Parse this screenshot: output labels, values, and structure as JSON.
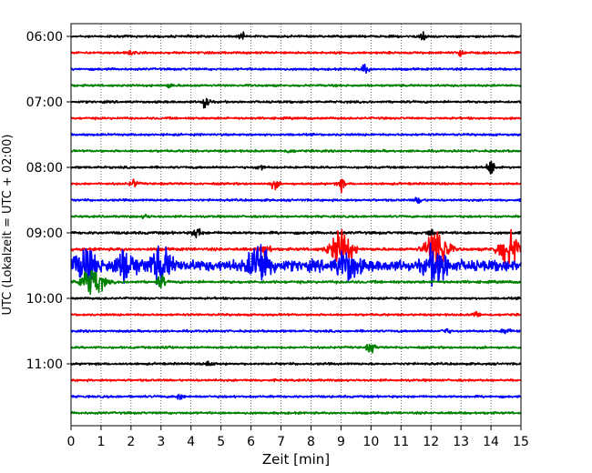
{
  "chart_data": {
    "type": "line",
    "title": "",
    "xlabel": "Zeit  [min]",
    "ylabel": "UTC (Lokalzeit = UTC + 02:00)",
    "xlim": [
      0,
      15
    ],
    "x_ticks": [
      0,
      1,
      2,
      3,
      4,
      5,
      6,
      7,
      8,
      9,
      10,
      11,
      12,
      13,
      14,
      15
    ],
    "y_ticks": [
      {
        "label": "06:00",
        "row": 0
      },
      {
        "label": "07:00",
        "row": 4
      },
      {
        "label": "08:00",
        "row": 8
      },
      {
        "label": "09:00",
        "row": 12
      },
      {
        "label": "10:00",
        "row": 16
      },
      {
        "label": "11:00",
        "row": 20
      }
    ],
    "grid": "vertical dotted at each minute",
    "trace_colors": [
      "#000000",
      "#ff0000",
      "#0000ff",
      "#008000"
    ],
    "row_interval_min": 15,
    "rows": [
      {
        "start": "06:00",
        "color": "#000000",
        "amp": 1.0,
        "events": [
          {
            "x": 5.7,
            "a": 3
          },
          {
            "x": 11.7,
            "a": 5
          }
        ]
      },
      {
        "start": "06:15",
        "color": "#ff0000",
        "amp": 1.0,
        "events": [
          {
            "x": 13.0,
            "a": 4
          },
          {
            "x": 2.0,
            "a": 2
          }
        ]
      },
      {
        "start": "06:30",
        "color": "#0000ff",
        "amp": 1.0,
        "events": [
          {
            "x": 9.8,
            "a": 5
          }
        ]
      },
      {
        "start": "06:45",
        "color": "#008000",
        "amp": 1.0,
        "events": [
          {
            "x": 3.3,
            "a": 2
          }
        ]
      },
      {
        "start": "07:00",
        "color": "#000000",
        "amp": 1.0,
        "events": [
          {
            "x": 4.5,
            "a": 8
          }
        ]
      },
      {
        "start": "07:15",
        "color": "#ff0000",
        "amp": 1.0,
        "events": []
      },
      {
        "start": "07:30",
        "color": "#0000ff",
        "amp": 1.0,
        "events": []
      },
      {
        "start": "07:45",
        "color": "#008000",
        "amp": 1.0,
        "events": [
          {
            "x": 7.3,
            "a": 2
          }
        ]
      },
      {
        "start": "08:00",
        "color": "#000000",
        "amp": 1.0,
        "events": [
          {
            "x": 6.3,
            "a": 3
          },
          {
            "x": 14.0,
            "a": 8
          }
        ]
      },
      {
        "start": "08:15",
        "color": "#ff0000",
        "amp": 1.0,
        "events": [
          {
            "x": 6.8,
            "a": 5
          },
          {
            "x": 9.0,
            "a": 6
          },
          {
            "x": 2.1,
            "a": 4
          }
        ]
      },
      {
        "start": "08:30",
        "color": "#0000ff",
        "amp": 1.0,
        "events": [
          {
            "x": 11.6,
            "a": 4
          }
        ]
      },
      {
        "start": "08:45",
        "color": "#008000",
        "amp": 1.0,
        "events": [
          {
            "x": 2.5,
            "a": 2
          }
        ]
      },
      {
        "start": "09:00",
        "color": "#000000",
        "amp": 1.2,
        "events": [
          {
            "x": 4.2,
            "a": 7
          },
          {
            "x": 12.0,
            "a": 4
          }
        ]
      },
      {
        "start": "09:15",
        "color": "#ff0000",
        "amp": 1.3,
        "events": [
          {
            "x": 6.5,
            "a": 10
          },
          {
            "x": 9.0,
            "a": 20
          },
          {
            "x": 12.2,
            "a": 24
          },
          {
            "x": 14.6,
            "a": 18
          }
        ]
      },
      {
        "start": "09:30",
        "color": "#0000ff",
        "amp": 5,
        "events": [
          {
            "x": 0.5,
            "a": 16
          },
          {
            "x": 1.8,
            "a": 14
          },
          {
            "x": 3.0,
            "a": 16
          },
          {
            "x": 6.3,
            "a": 22
          },
          {
            "x": 9.2,
            "a": 14
          },
          {
            "x": 12.2,
            "a": 18
          }
        ]
      },
      {
        "start": "09:45",
        "color": "#008000",
        "amp": 1.2,
        "events": [
          {
            "x": 0.7,
            "a": 16
          },
          {
            "x": 3.0,
            "a": 8
          }
        ]
      },
      {
        "start": "10:00",
        "color": "#000000",
        "amp": 1.0,
        "events": []
      },
      {
        "start": "10:15",
        "color": "#ff0000",
        "amp": 1.0,
        "events": [
          {
            "x": 13.5,
            "a": 3
          }
        ]
      },
      {
        "start": "10:30",
        "color": "#0000ff",
        "amp": 1.0,
        "events": [
          {
            "x": 12.5,
            "a": 3
          },
          {
            "x": 14.5,
            "a": 4
          }
        ]
      },
      {
        "start": "10:45",
        "color": "#008000",
        "amp": 1.0,
        "events": [
          {
            "x": 10.0,
            "a": 6
          },
          {
            "x": 3.2,
            "a": 2
          }
        ]
      },
      {
        "start": "11:00",
        "color": "#000000",
        "amp": 1.0,
        "events": [
          {
            "x": 4.6,
            "a": 3
          }
        ]
      },
      {
        "start": "11:15",
        "color": "#ff0000",
        "amp": 1.0,
        "events": []
      },
      {
        "start": "11:30",
        "color": "#0000ff",
        "amp": 1.0,
        "events": [
          {
            "x": 3.6,
            "a": 3
          }
        ]
      },
      {
        "start": "11:45",
        "color": "#008000",
        "amp": 1.0,
        "events": []
      }
    ]
  }
}
